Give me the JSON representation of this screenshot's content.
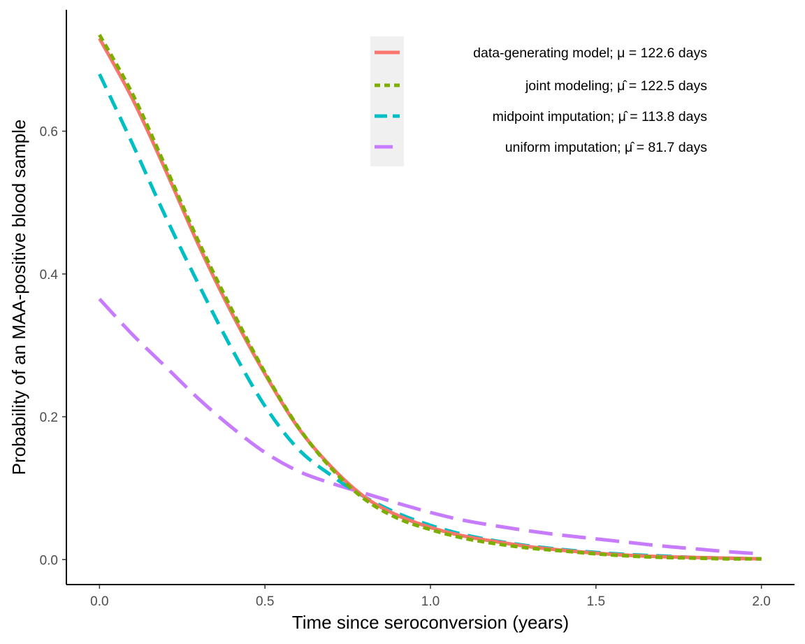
{
  "chart_data": {
    "type": "line",
    "xlabel": "Time since seroconversion (years)",
    "ylabel": "Probability of an MAA-positive blood sample",
    "xlim": [
      -0.1,
      2.1
    ],
    "ylim": [
      -0.035,
      0.77
    ],
    "x_ticks": [
      0.0,
      0.5,
      1.0,
      1.5,
      2.0
    ],
    "x_tick_labels": [
      "0.0",
      "0.5",
      "1.0",
      "1.5",
      "2.0"
    ],
    "y_ticks": [
      0.0,
      0.2,
      0.4,
      0.6
    ],
    "y_tick_labels": [
      "0.0",
      "0.2",
      "0.4",
      "0.6"
    ],
    "grid": false,
    "legend_position": "top-right",
    "x": [
      0.0,
      0.1,
      0.2,
      0.3,
      0.4,
      0.5,
      0.6,
      0.7,
      0.8,
      0.9,
      1.0,
      1.1,
      1.2,
      1.3,
      1.4,
      1.5,
      1.6,
      1.7,
      1.8,
      1.9,
      2.0
    ],
    "series": [
      {
        "name": "data-generating model; μ = 122.6 days",
        "legend_prefix": "data-generating model; ",
        "legend_symbol": "μ",
        "legend_suffix": " = 122.6 days",
        "hat": false,
        "color": "#F8766D",
        "dash": "solid",
        "values": [
          0.73,
          0.645,
          0.545,
          0.44,
          0.345,
          0.26,
          0.185,
          0.13,
          0.088,
          0.062,
          0.045,
          0.033,
          0.025,
          0.018,
          0.013,
          0.009,
          0.006,
          0.004,
          0.003,
          0.002,
          0.001
        ]
      },
      {
        "name": "joint modeling; μ̂ = 122.5 days",
        "legend_prefix": "joint modeling; ",
        "legend_symbol": "μ",
        "legend_suffix": " = 122.5 days",
        "hat": true,
        "color": "#7CAE00",
        "dash": "dotted",
        "values": [
          0.735,
          0.652,
          0.55,
          0.445,
          0.35,
          0.262,
          0.186,
          0.128,
          0.085,
          0.058,
          0.042,
          0.03,
          0.022,
          0.016,
          0.012,
          0.008,
          0.005,
          0.003,
          0.002,
          0.001,
          0.001
        ]
      },
      {
        "name": "midpoint imputation; μ̂ = 113.8 days",
        "legend_prefix": "midpoint imputation; ",
        "legend_symbol": "μ",
        "legend_suffix": " = 113.8 days",
        "hat": true,
        "color": "#00BFC4",
        "dash": "dashed",
        "values": [
          0.68,
          0.582,
          0.48,
          0.385,
          0.295,
          0.215,
          0.155,
          0.118,
          0.088,
          0.065,
          0.048,
          0.035,
          0.026,
          0.019,
          0.014,
          0.01,
          0.007,
          0.005,
          0.003,
          0.002,
          0.001
        ]
      },
      {
        "name": "uniform imputation; μ̂ = 81.7 days",
        "legend_prefix": "uniform imputation; ",
        "legend_symbol": "μ",
        "legend_suffix": " = 81.7 days",
        "hat": true,
        "color": "#C77CFF",
        "dash": "longdash",
        "values": [
          0.365,
          0.315,
          0.27,
          0.225,
          0.185,
          0.15,
          0.124,
          0.107,
          0.093,
          0.079,
          0.066,
          0.055,
          0.047,
          0.04,
          0.034,
          0.029,
          0.024,
          0.019,
          0.015,
          0.011,
          0.008
        ]
      }
    ]
  }
}
